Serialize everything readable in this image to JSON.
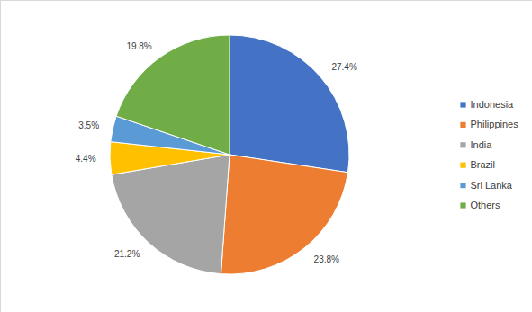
{
  "chart_data": {
    "type": "pie",
    "categories": [
      "Indonesia",
      "Philippines",
      "India",
      "Brazil",
      "Sri Lanka",
      "Others"
    ],
    "values": [
      27.4,
      23.8,
      21.2,
      4.4,
      3.5,
      19.8
    ],
    "value_labels": [
      "27.4%",
      "23.8%",
      "21.2%",
      "4.4%",
      "3.5%",
      "19.8%"
    ],
    "colors": [
      "#4472c4",
      "#ed7d31",
      "#a5a5a5",
      "#ffc000",
      "#5b9bd5",
      "#70ad47"
    ],
    "data_labels": true,
    "legend": "right"
  }
}
